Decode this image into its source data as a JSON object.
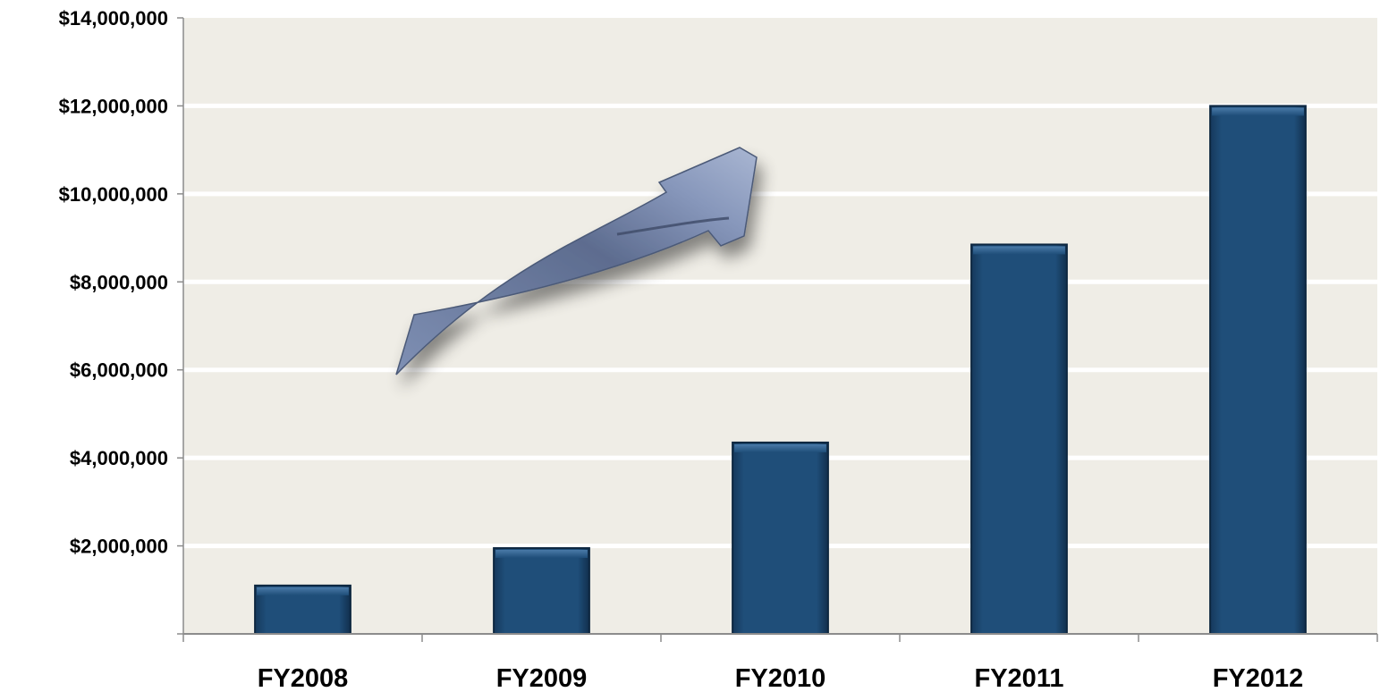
{
  "chart_data": {
    "type": "bar",
    "title": "",
    "xlabel": "",
    "ylabel": "",
    "categories": [
      "FY2008",
      "FY2009",
      "FY2010",
      "FY2011",
      "FY2012"
    ],
    "values": [
      1100000,
      1950000,
      4350000,
      8850000,
      12000000
    ],
    "ylim": [
      0,
      14000000
    ],
    "y_ticks": [
      0,
      2000000,
      4000000,
      6000000,
      8000000,
      10000000,
      12000000,
      14000000
    ],
    "y_tick_labels": [
      "",
      "$2,000,000",
      "$4,000,000",
      "$6,000,000",
      "$8,000,000",
      "$10,000,000",
      "$12,000,000",
      "$14,000,000"
    ],
    "grid": true,
    "legend": "none",
    "colors": {
      "bar": "#1f4e79",
      "bar_dark": "#0f2a45",
      "bar_light": "#3d6d9c",
      "plot_bg": "#efede6",
      "grid": "#ffffff",
      "axis": "#8c8c8c",
      "arrow": "#7b8cb0"
    },
    "decoration": "upward-trend-arrow"
  }
}
